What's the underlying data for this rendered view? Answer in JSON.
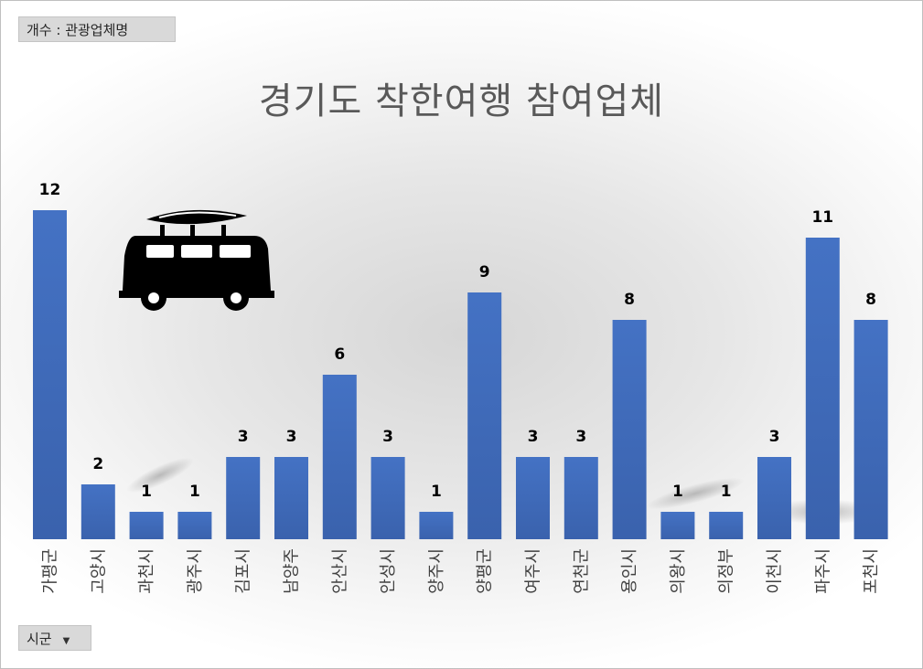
{
  "pivot": {
    "value_field": "개수 : 관광업체명",
    "axis_field": "시군"
  },
  "icons": {
    "van": "van-with-kayak-icon",
    "dropdown": "dropdown-arrow-icon"
  },
  "colors": {
    "bar": "#4472c4",
    "bar_dark": "#2f5597"
  },
  "chart_data": {
    "type": "bar",
    "title": "경기도 착한여행 참여업체",
    "categories": [
      "가평군",
      "고양시",
      "과천시",
      "광주시",
      "김포시",
      "남양주",
      "안산시",
      "안성시",
      "양주시",
      "양평군",
      "여주시",
      "연천군",
      "용인시",
      "의왕시",
      "의정부",
      "이천시",
      "파주시",
      "포천시"
    ],
    "values": [
      12,
      2,
      1,
      1,
      3,
      3,
      6,
      3,
      1,
      9,
      3,
      3,
      8,
      1,
      1,
      3,
      11,
      8
    ],
    "ylim": [
      0,
      12
    ],
    "grid": false,
    "legend": "none",
    "data_labels": true
  }
}
